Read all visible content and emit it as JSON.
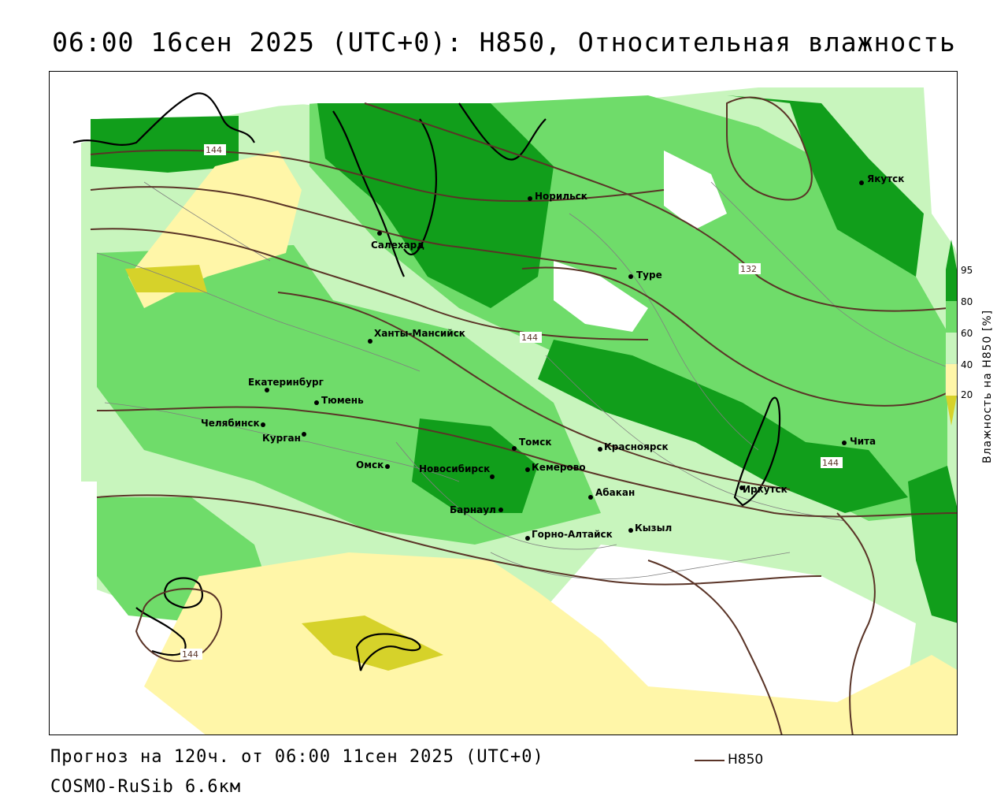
{
  "title": "06:00 16сен 2025 (UTC+0): H850, Относительная влажность",
  "map": {
    "cities": [
      {
        "name": "Якутск"
      },
      {
        "name": "Норильск"
      },
      {
        "name": "Салехард"
      },
      {
        "name": "Туре"
      },
      {
        "name": "Ханты-Мансийск"
      },
      {
        "name": "Екатеринбург"
      },
      {
        "name": "Тюмень"
      },
      {
        "name": "Челябинск"
      },
      {
        "name": "Курган"
      },
      {
        "name": "Омск"
      },
      {
        "name": "Новосибирск"
      },
      {
        "name": "Томск"
      },
      {
        "name": "Кемерово"
      },
      {
        "name": "Красноярск"
      },
      {
        "name": "Абакан"
      },
      {
        "name": "Барнаул"
      },
      {
        "name": "Горно-Алтайск"
      },
      {
        "name": "Кызыл"
      },
      {
        "name": "Иркутск"
      },
      {
        "name": "Чита"
      }
    ],
    "contour_labels": [
      "144",
      "132",
      "144",
      "144",
      "144"
    ],
    "colors": {
      "dry_dark": "#d6d22a",
      "dry_light": "#fff6a8",
      "neutral": "#ffffff",
      "moist_light": "#c8f5bd",
      "moist_mid": "#6fdc6a",
      "moist_dark": "#119e1b",
      "contour": "#5a3427",
      "coast": "#000000",
      "borders": "#7f7f7f"
    }
  },
  "legend": {
    "ticks": [
      "95",
      "80",
      "60",
      "40",
      "20"
    ],
    "axis_title": "Влажность на H850 [%]"
  },
  "footer": {
    "forecast": "Прогноз на 120ч. от 06:00 11сен 2025 (UTC+0)",
    "model": "COSMO-RuSib 6.6км",
    "line_key": "H850"
  }
}
